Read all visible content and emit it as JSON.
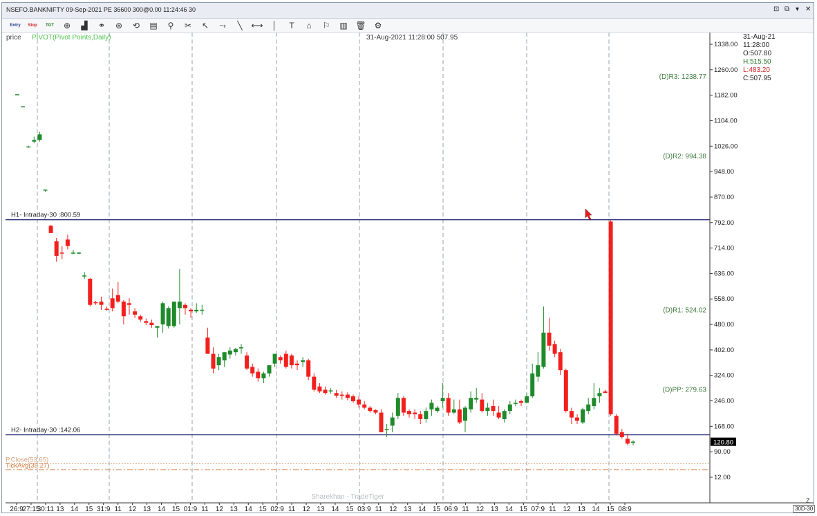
{
  "window": {
    "title": "NSEFO.BANKNIFTY 09-Sep-2021 PE 36600 300@0.00 11:24:46 30",
    "controls": [
      "⊡",
      "⧉",
      "▾",
      "✕"
    ]
  },
  "toolbar": {
    "items": [
      {
        "name": "entry-button",
        "label": "Entry",
        "small": true
      },
      {
        "name": "stop-button",
        "label": "Stop",
        "small": true
      },
      {
        "name": "tgt-button",
        "label": "TGT",
        "small": true
      },
      {
        "name": "crosshair-icon",
        "label": "⊕"
      },
      {
        "name": "chart-type-icon",
        "label": "▟"
      },
      {
        "name": "link-icon",
        "label": "⚭"
      },
      {
        "name": "compass-icon",
        "label": "⊛"
      },
      {
        "name": "drawing-icon",
        "label": "⟲"
      },
      {
        "name": "template-icon",
        "label": "▤"
      },
      {
        "name": "zoom-icon",
        "label": "⚲"
      },
      {
        "name": "scissors-icon",
        "label": "✂"
      },
      {
        "name": "pointer-icon",
        "label": "↖"
      },
      {
        "name": "trend-icon",
        "label": "⤳"
      },
      {
        "name": "line-icon",
        "label": "╲"
      },
      {
        "name": "hline-icon",
        "label": "⟷"
      },
      {
        "name": "vline-icon",
        "label": "│"
      },
      {
        "name": "text-icon",
        "label": "T"
      },
      {
        "name": "tag-icon",
        "label": "⌂"
      },
      {
        "name": "alert-icon",
        "label": "⚐"
      },
      {
        "name": "bars-icon",
        "label": "▥"
      },
      {
        "name": "delete-icon",
        "label": "🗑"
      },
      {
        "name": "settings-icon",
        "label": "⚙"
      }
    ]
  },
  "chart_data": {
    "type": "candlestick",
    "header_left": "price",
    "indicator": "PIVOT(Pivot Points,Daily)",
    "cursor_readout": "31-Aug-2021 11:28:00 507.95",
    "ylim": [
      0,
      1380
    ],
    "y_ticks": [
      "1338.00",
      "1260.00",
      "1182.00",
      "1104.00",
      "1026.00",
      "948.00",
      "870.00",
      "792.00",
      "714.00",
      "636.00",
      "558.00",
      "480.00",
      "402.00",
      "324.00",
      "246.00",
      "168.00",
      "90.00",
      "12.00"
    ],
    "y_tick_values": [
      1338,
      1260,
      1182,
      1104,
      1026,
      948,
      870,
      792,
      714,
      636,
      558,
      480,
      402,
      324,
      246,
      168,
      90,
      12
    ],
    "last_price": "120.80",
    "last_price_value": 120.8,
    "pivots": [
      {
        "label": "(D)R3: 1238.77",
        "value": 1238.77
      },
      {
        "label": "(D)R2: 994.38",
        "value": 994.38
      },
      {
        "label": "(D)R1: 524.02",
        "value": 524.02
      },
      {
        "label": "(D)PP: 279.63",
        "value": 279.63
      }
    ],
    "hlines": [
      {
        "label": "H1- Intraday-30 :800.59",
        "value": 800.59
      },
      {
        "label": "H2- Intraday-30 :142.06",
        "value": 142.06
      }
    ],
    "dashed_lines": [
      {
        "label": "P.Close(53.65)",
        "value": 53.65
      },
      {
        "label": "TickAvg(35.27)",
        "value": 35.27
      }
    ],
    "x_labels": [
      "26:9",
      "27:15",
      "30:11",
      "13",
      "14",
      "15",
      "31:9",
      "11",
      "12",
      "13",
      "14",
      "15",
      "01:9",
      "11",
      "12",
      "13",
      "14",
      "15",
      "02:9",
      "11",
      "12",
      "13",
      "14",
      "15",
      "03:9",
      "11",
      "12",
      "13",
      "14",
      "15",
      "06:9",
      "11",
      "12",
      "13",
      "14",
      "15",
      "07:9",
      "11",
      "12",
      "13",
      "14",
      "15",
      "08:9"
    ],
    "day_separators": [
      2,
      6,
      12,
      18,
      24,
      30,
      36,
      42
    ],
    "candles": [
      [
        1185,
        1185,
        1185,
        1185
      ],
      [
        1148,
        1148,
        1148,
        1148
      ],
      [
        1025,
        1027,
        1022,
        1025
      ],
      [
        1040,
        1055,
        1035,
        1045
      ],
      [
        1045,
        1070,
        1040,
        1062
      ],
      [
        893,
        893,
        886,
        893
      ],
      [
        782,
        785,
        760,
        760
      ],
      [
        735,
        745,
        672,
        690
      ],
      [
        700,
        720,
        680,
        698
      ],
      [
        740,
        755,
        710,
        720
      ],
      [
        700,
        708,
        695,
        700
      ],
      [
        700,
        702,
        695,
        700
      ],
      [
        630,
        640,
        620,
        630
      ],
      [
        620,
        622,
        535,
        540
      ],
      [
        548,
        552,
        540,
        545
      ],
      [
        550,
        565,
        525,
        540
      ],
      [
        528,
        535,
        522,
        525
      ],
      [
        560,
        590,
        520,
        530
      ],
      [
        570,
        610,
        545,
        550
      ],
      [
        550,
        555,
        480,
        505
      ],
      [
        545,
        560,
        510,
        540
      ],
      [
        520,
        530,
        500,
        510
      ],
      [
        505,
        510,
        488,
        495
      ],
      [
        490,
        498,
        478,
        485
      ],
      [
        485,
        495,
        470,
        478
      ],
      [
        470,
        475,
        440,
        475
      ],
      [
        480,
        550,
        455,
        545
      ],
      [
        475,
        535,
        468,
        530
      ],
      [
        475,
        545,
        470,
        550
      ],
      [
        530,
        650,
        480,
        550
      ],
      [
        540,
        545,
        510,
        530
      ],
      [
        525,
        530,
        500,
        520
      ],
      [
        520,
        545,
        515,
        525
      ],
      [
        525,
        540,
        510,
        525
      ],
      [
        440,
        470,
        390,
        390
      ],
      [
        390,
        410,
        330,
        345
      ],
      [
        355,
        390,
        340,
        380
      ],
      [
        370,
        395,
        350,
        395
      ],
      [
        388,
        410,
        375,
        400
      ],
      [
        395,
        408,
        385,
        405
      ],
      [
        410,
        420,
        390,
        410
      ],
      [
        385,
        395,
        340,
        345
      ],
      [
        350,
        360,
        320,
        330
      ],
      [
        335,
        345,
        305,
        315
      ],
      [
        315,
        335,
        300,
        330
      ],
      [
        330,
        350,
        320,
        355
      ],
      [
        360,
        390,
        350,
        390
      ],
      [
        380,
        385,
        360,
        370
      ],
      [
        390,
        400,
        345,
        350
      ],
      [
        385,
        390,
        345,
        355
      ],
      [
        360,
        370,
        340,
        355
      ],
      [
        365,
        380,
        350,
        370
      ],
      [
        370,
        375,
        310,
        320
      ],
      [
        320,
        330,
        275,
        280
      ],
      [
        290,
        300,
        270,
        275
      ],
      [
        280,
        290,
        265,
        270
      ],
      [
        275,
        285,
        268,
        278
      ],
      [
        270,
        280,
        255,
        262
      ],
      [
        265,
        275,
        250,
        262
      ],
      [
        265,
        272,
        248,
        255
      ],
      [
        260,
        265,
        240,
        245
      ],
      [
        250,
        260,
        225,
        235
      ],
      [
        235,
        245,
        220,
        225
      ],
      [
        225,
        230,
        210,
        215
      ],
      [
        218,
        220,
        205,
        210
      ],
      [
        210,
        220,
        150,
        150
      ],
      [
        160,
        175,
        135,
        160
      ],
      [
        170,
        210,
        150,
        195
      ],
      [
        200,
        270,
        190,
        255
      ],
      [
        255,
        260,
        200,
        210
      ],
      [
        215,
        220,
        195,
        205
      ],
      [
        210,
        220,
        190,
        205
      ],
      [
        205,
        215,
        175,
        190
      ],
      [
        190,
        225,
        180,
        215
      ],
      [
        220,
        250,
        200,
        240
      ],
      [
        215,
        230,
        210,
        225
      ],
      [
        245,
        300,
        225,
        255
      ],
      [
        255,
        270,
        200,
        210
      ],
      [
        210,
        250,
        205,
        220
      ],
      [
        220,
        250,
        175,
        180
      ],
      [
        185,
        230,
        150,
        225
      ],
      [
        220,
        275,
        210,
        255
      ],
      [
        250,
        285,
        240,
        255
      ],
      [
        250,
        270,
        210,
        215
      ],
      [
        215,
        240,
        200,
        225
      ],
      [
        230,
        250,
        200,
        215
      ],
      [
        210,
        230,
        190,
        195
      ],
      [
        190,
        220,
        180,
        215
      ],
      [
        215,
        245,
        205,
        235
      ],
      [
        240,
        250,
        230,
        240
      ],
      [
        245,
        250,
        230,
        240
      ],
      [
        240,
        270,
        238,
        260
      ],
      [
        260,
        360,
        255,
        330
      ],
      [
        320,
        395,
        305,
        355
      ],
      [
        350,
        535,
        345,
        455
      ],
      [
        455,
        500,
        400,
        415
      ],
      [
        420,
        430,
        380,
        390
      ],
      [
        395,
        405,
        325,
        340
      ],
      [
        340,
        345,
        210,
        215
      ],
      [
        215,
        225,
        175,
        195
      ],
      [
        195,
        205,
        175,
        185
      ],
      [
        180,
        225,
        175,
        220
      ],
      [
        215,
        255,
        205,
        235
      ],
      [
        230,
        300,
        220,
        255
      ],
      [
        260,
        285,
        240,
        270
      ],
      [
        275,
        280,
        270,
        270
      ],
      [
        795,
        800,
        200,
        205
      ],
      [
        200,
        205,
        140,
        145
      ],
      [
        150,
        160,
        130,
        135
      ],
      [
        130,
        145,
        110,
        115
      ],
      [
        118,
        125,
        110,
        121
      ]
    ],
    "watermark": "Sharekhan - TradeTiger"
  },
  "side_panel": {
    "date": "31-Aug-21",
    "time": "11:28:00",
    "open": "O:507.80",
    "high": "H:515.50",
    "low": "L:483.20",
    "close": "C:507.95"
  },
  "status": {
    "period": "30D-30",
    "zoom": "Z"
  },
  "colors": {
    "up": "#1f8a2b",
    "down": "#f2201d",
    "hline": "#2a2f7a",
    "pivot_text": "#3e7a3e",
    "indicator_text": "#4fc34f",
    "pclose": "#d4a27a",
    "tickavg": "#d07a3c",
    "grid": "#9aa3ad"
  }
}
